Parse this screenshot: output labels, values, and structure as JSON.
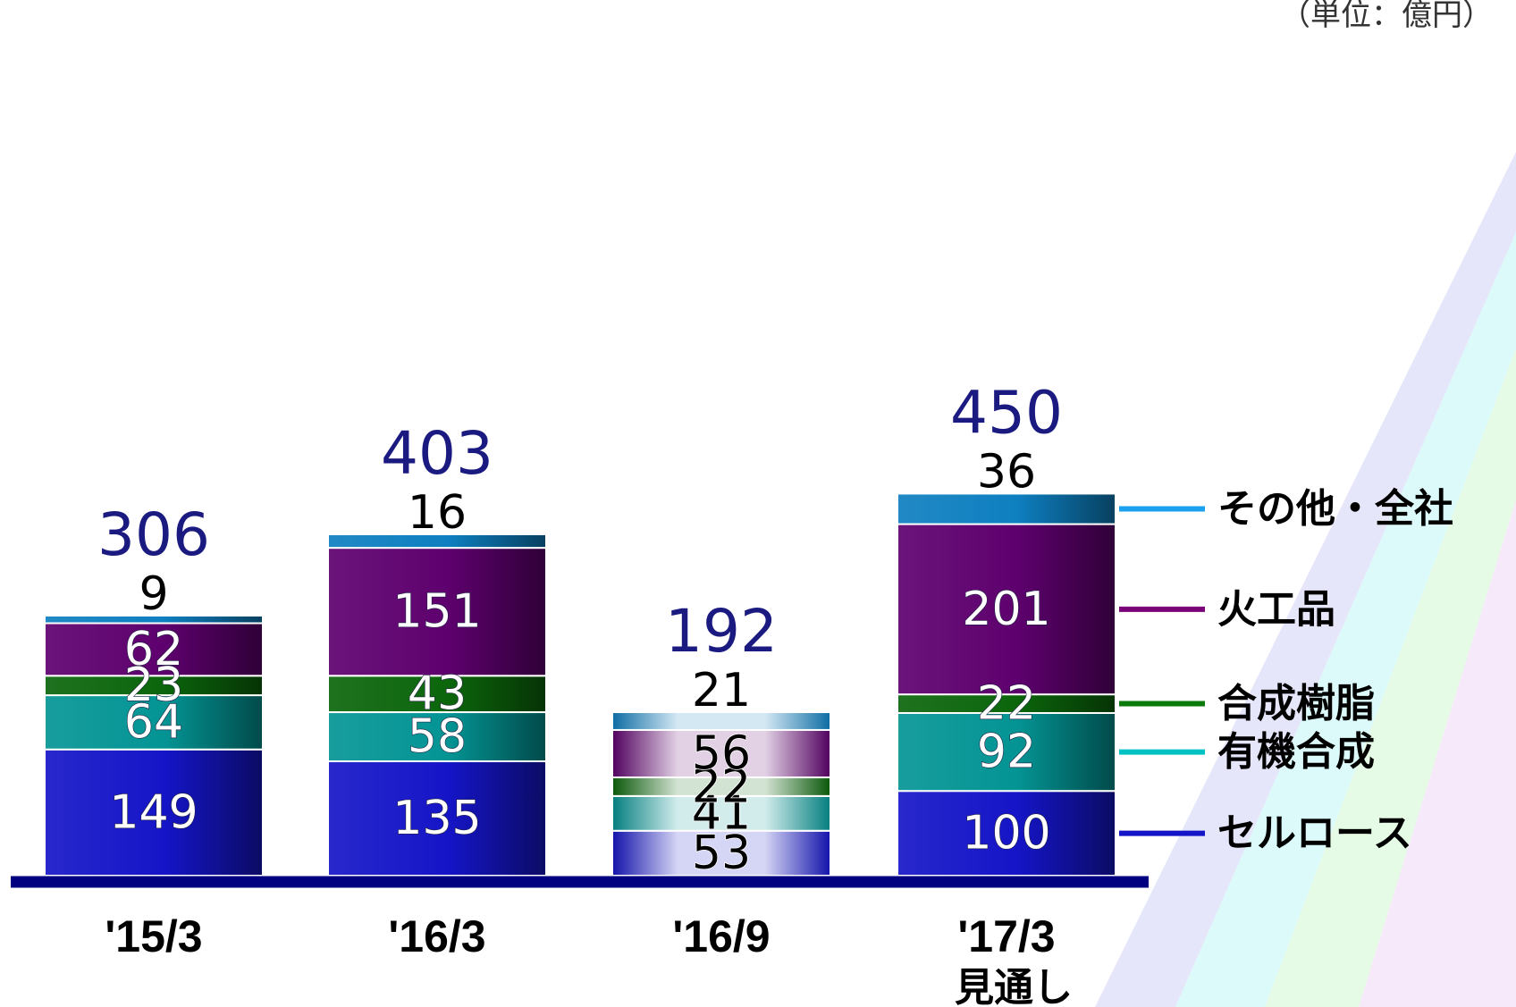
{
  "unit": "（単位：億円）",
  "colors": {
    "セルロース": "#1515c8",
    "有機合成": "#049494",
    "合成樹脂": "#0b660b",
    "火工品": "#5e006e",
    "その他・全社": "#0e7fc0",
    "axis": "#000080",
    "total_text": "#1a1a80"
  },
  "chart_data": {
    "type": "bar",
    "stacked": true,
    "categories": [
      "'15/3",
      "'16/3",
      "'16/9",
      "'17/3"
    ],
    "category_sublabels": [
      "",
      "",
      "",
      "見通し"
    ],
    "series": [
      {
        "name": "セルロース",
        "values": [
          149,
          135,
          53,
          100
        ]
      },
      {
        "name": "有機合成",
        "values": [
          64,
          58,
          41,
          92
        ]
      },
      {
        "name": "合成樹脂",
        "values": [
          23,
          43,
          22,
          22
        ]
      },
      {
        "name": "火工品",
        "values": [
          62,
          151,
          56,
          201
        ]
      },
      {
        "name": "その他・全社",
        "values": [
          9,
          16,
          21,
          36
        ]
      }
    ],
    "totals": [
      306,
      403,
      192,
      450
    ],
    "highlighted_pale": [
      false,
      false,
      true,
      false
    ],
    "ylim": [
      0,
      470
    ],
    "grid": false,
    "legend": "right"
  }
}
